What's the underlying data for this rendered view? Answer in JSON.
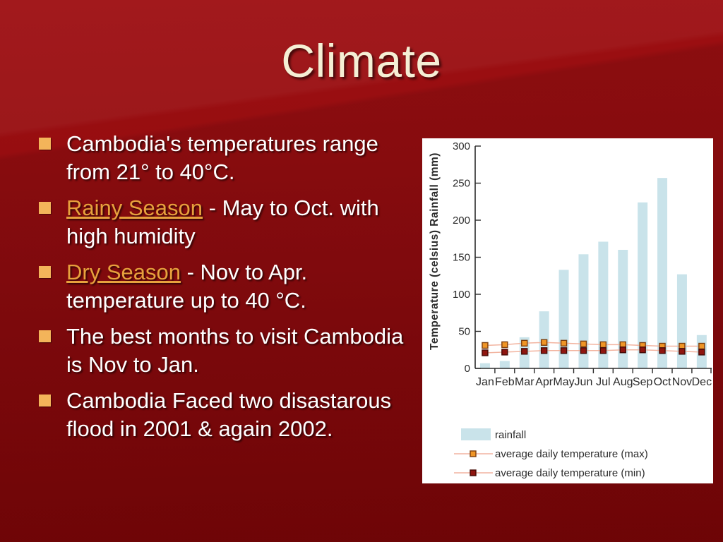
{
  "slide": {
    "title": "Climate",
    "bullets": [
      {
        "segments": [
          {
            "text": "Cambodia's temperatures range from 21° to 40°C.",
            "link": false
          }
        ]
      },
      {
        "segments": [
          {
            "text": "Rainy Season",
            "link": true
          },
          {
            "text": " - May to Oct. with high humidity",
            "link": false
          }
        ]
      },
      {
        "segments": [
          {
            "text": "Dry Season",
            "link": true
          },
          {
            "text": " - Nov to Apr. temperature up to 40 °C.",
            "link": false
          }
        ]
      },
      {
        "segments": [
          {
            "text": "The best months to visit Cambodia is Nov to Jan.",
            "link": false
          }
        ]
      },
      {
        "segments": [
          {
            "text": "Cambodia Faced two disastarous flood in 2001 & again 2002.",
            "link": false
          }
        ]
      }
    ]
  },
  "colors": {
    "slide_background_top": "#9e0f12",
    "slide_background_bottom": "#7a0507",
    "title_text": "#f5efd5",
    "body_text": "#ffffff",
    "bullet_square": "#f3b45a",
    "hyperlink": "#e7a13d",
    "chart_background": "#ffffff",
    "rainfall_bar": "#c9e3ea",
    "temp_line": "#f2b4a0",
    "temp_max_marker": "#ef9526",
    "temp_max_marker_stroke": "#7d3f0e",
    "temp_min_marker": "#8f150f",
    "temp_min_marker_stroke": "#450a06",
    "axis": "#2b2b2b"
  },
  "chart_data": {
    "type": "bar",
    "title": "",
    "xlabel": "",
    "ylabel": "Temperature (celsius)   Rainfall (mm)",
    "ylim": [
      0,
      300
    ],
    "yticks": [
      0,
      50,
      100,
      150,
      200,
      250,
      300
    ],
    "grid": false,
    "legend_position": "bottom",
    "categories": [
      "Jan",
      "Feb",
      "Mar",
      "Apr",
      "May",
      "Jun",
      "Jul",
      "Aug",
      "Sep",
      "Oct",
      "Nov",
      "Dec"
    ],
    "series": [
      {
        "name": "rainfall",
        "kind": "bar",
        "color": "#c9e3ea",
        "values": [
          7,
          10,
          42,
          77,
          133,
          154,
          171,
          160,
          224,
          257,
          127,
          45
        ]
      },
      {
        "name": "average daily temperature (max)",
        "kind": "line",
        "line_color": "#f2b4a0",
        "marker_fill": "#ef9526",
        "marker_stroke": "#7d3f0e",
        "values": [
          31,
          32,
          34,
          35,
          34,
          33,
          32,
          32,
          31,
          30,
          30,
          30
        ]
      },
      {
        "name": "average daily temperature (min)",
        "kind": "line",
        "line_color": "#f2b4a0",
        "marker_fill": "#8f150f",
        "marker_stroke": "#450a06",
        "values": [
          21,
          22,
          23,
          24,
          24,
          24,
          24,
          25,
          25,
          24,
          23,
          22
        ]
      }
    ]
  }
}
